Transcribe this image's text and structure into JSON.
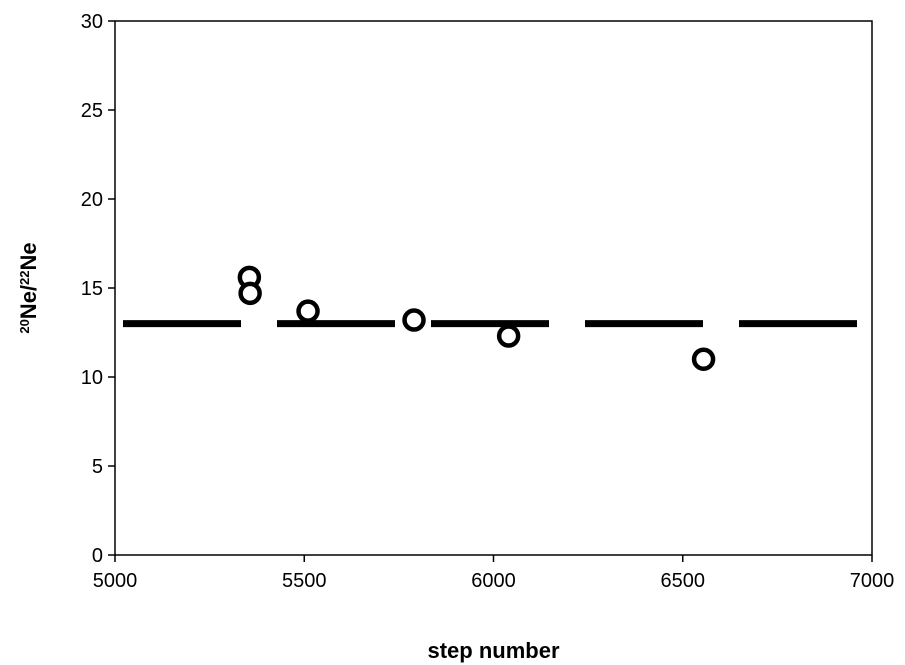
{
  "chart_data": {
    "type": "scatter",
    "xlabel": "step number",
    "ylabel": {
      "sup1": "20",
      "main1": "Ne/",
      "sup2": "22",
      "main2": "Ne"
    },
    "xlim": [
      5000,
      7000
    ],
    "ylim": [
      0,
      30
    ],
    "xticks": [
      5000,
      5500,
      6000,
      6500,
      7000
    ],
    "yticks": [
      0,
      5,
      10,
      15,
      20,
      25,
      30
    ],
    "grid": false,
    "legend": "none",
    "points": [
      {
        "x": 5355,
        "y": 15.6
      },
      {
        "x": 5357,
        "y": 14.7
      },
      {
        "x": 5510,
        "y": 13.7
      },
      {
        "x": 5790,
        "y": 13.2
      },
      {
        "x": 6040,
        "y": 12.3
      },
      {
        "x": 6555,
        "y": 11.0
      }
    ],
    "reference_line": {
      "y": 13.0,
      "style": "dashed",
      "x_range": [
        5000,
        7000
      ]
    },
    "colors": {
      "marker": "#000000",
      "line": "#000000",
      "axis": "#000000"
    }
  }
}
